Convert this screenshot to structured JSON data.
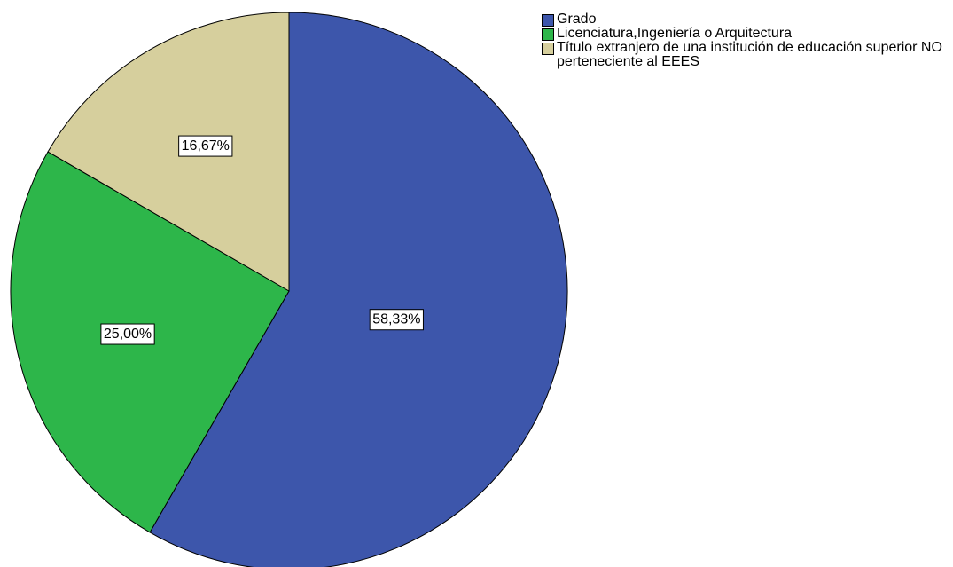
{
  "chart_data": {
    "type": "pie",
    "categories": [
      "Grado",
      "Licenciatura,Ingeniería o Arquitectura",
      "Título extranjero de una institución de educación superior NO perteneciente al EEES"
    ],
    "values": [
      58.33,
      25.0,
      16.67
    ],
    "value_labels": [
      "58,33%",
      "25,00%",
      "16,67%"
    ],
    "colors": [
      "#3d56ab",
      "#2db64a",
      "#d6cf9d"
    ]
  }
}
